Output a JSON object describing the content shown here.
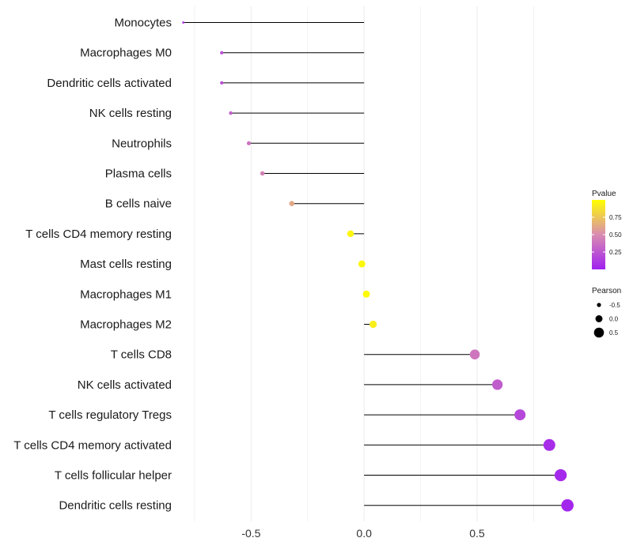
{
  "chart_data": {
    "type": "lollipop",
    "title": "",
    "xlabel": "",
    "ylabel": "",
    "xlim": [
      -0.82,
      0.98
    ],
    "x_ticks": [
      -0.5,
      0.0,
      0.5
    ],
    "x_tick_labels": [
      "-0.5",
      "0.0",
      "0.5"
    ],
    "grid": true,
    "colors": {
      "low": "#a020f0",
      "mid": "#d98cb0",
      "high": "#ffff00",
      "stem": "#000000",
      "grid": "#ebebeb"
    },
    "categories": [
      "Monocytes",
      "Macrophages M0",
      "Dendritic cells activated",
      "NK cells resting",
      "Neutrophils",
      "Plasma cells",
      "B cells naive",
      "T cells CD4 memory resting",
      "Mast cells resting",
      "Macrophages M1",
      "Macrophages M2",
      "T cells CD8",
      "NK cells activated",
      "T cells regulatory  Tregs ",
      "T cells CD4 memory activated",
      "T cells follicular helper",
      "Dendritic cells resting"
    ],
    "values": [
      -0.8,
      -0.63,
      -0.63,
      -0.59,
      -0.51,
      -0.45,
      -0.32,
      -0.06,
      -0.01,
      0.01,
      0.04,
      0.49,
      0.59,
      0.69,
      0.82,
      0.87,
      0.9
    ],
    "pvalues": [
      0.15,
      0.22,
      0.22,
      0.3,
      0.38,
      0.45,
      0.62,
      0.96,
      0.97,
      0.98,
      0.92,
      0.4,
      0.28,
      0.18,
      0.06,
      0.04,
      0.03
    ],
    "legend_position": "right",
    "legends": {
      "color": {
        "title": "Pvalue",
        "ticks": [
          0.25,
          0.5,
          0.75
        ],
        "tick_labels": [
          "0.25",
          "0.50",
          "0.75"
        ],
        "range": [
          0.0,
          1.0
        ]
      },
      "size": {
        "title": "Pearson",
        "values": [
          -0.5,
          0.0,
          0.5
        ],
        "labels": [
          "-0.5",
          "0.0",
          "0.5"
        ]
      }
    }
  }
}
